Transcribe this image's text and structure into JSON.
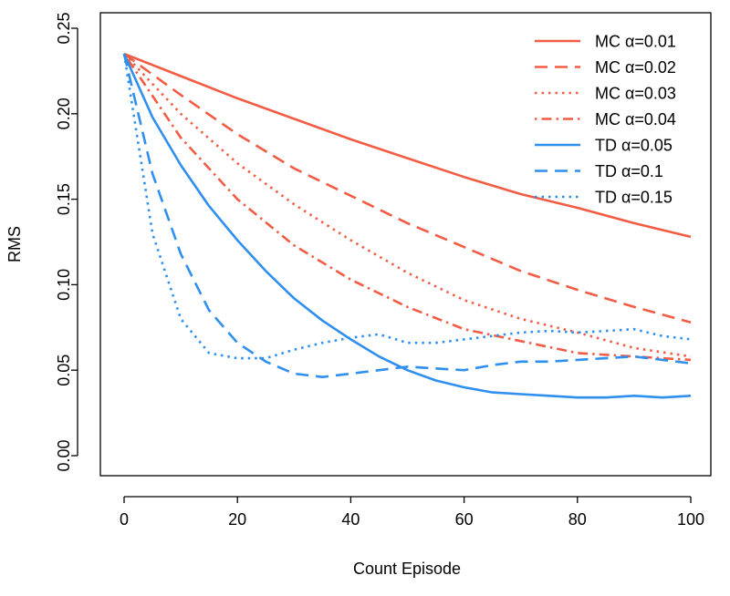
{
  "chart_data": {
    "type": "line",
    "title": "",
    "xlabel": "Count Episode",
    "ylabel": "RMS",
    "xlim": [
      0,
      100
    ],
    "ylim": [
      0,
      0.25
    ],
    "xticks": [
      0,
      20,
      40,
      60,
      80,
      100
    ],
    "yticks": [
      0.0,
      0.05,
      0.1,
      0.15,
      0.2,
      0.25
    ],
    "xtick_labels": [
      "0",
      "20",
      "40",
      "60",
      "80",
      "100"
    ],
    "ytick_labels": [
      "0.00",
      "0.05",
      "0.10",
      "0.15",
      "0.20",
      "0.25"
    ],
    "grid": false,
    "legend_position": "top-right",
    "colors": {
      "mc": "#f25c44",
      "td": "#2e8fef"
    },
    "series": [
      {
        "name": "MC α=0.01",
        "color": "#f25c44",
        "style": "solid",
        "x": [
          0,
          10,
          20,
          30,
          40,
          50,
          60,
          70,
          80,
          90,
          100
        ],
        "values": [
          0.235,
          0.222,
          0.209,
          0.197,
          0.185,
          0.174,
          0.163,
          0.153,
          0.145,
          0.136,
          0.128
        ]
      },
      {
        "name": "MC α=0.02",
        "color": "#f25c44",
        "style": "dashed",
        "x": [
          0,
          10,
          20,
          30,
          40,
          50,
          60,
          70,
          80,
          90,
          100
        ],
        "values": [
          0.235,
          0.211,
          0.188,
          0.168,
          0.152,
          0.136,
          0.122,
          0.108,
          0.097,
          0.087,
          0.078
        ]
      },
      {
        "name": "MC α=0.03",
        "color": "#f25c44",
        "style": "dotted",
        "x": [
          0,
          10,
          20,
          30,
          40,
          50,
          60,
          70,
          80,
          90,
          100
        ],
        "values": [
          0.235,
          0.2,
          0.171,
          0.147,
          0.126,
          0.107,
          0.091,
          0.08,
          0.072,
          0.063,
          0.058
        ]
      },
      {
        "name": "MC α=0.04",
        "color": "#f25c44",
        "style": "dotdash",
        "x": [
          0,
          10,
          20,
          30,
          40,
          50,
          60,
          70,
          80,
          90,
          100
        ],
        "values": [
          0.235,
          0.186,
          0.15,
          0.123,
          0.103,
          0.087,
          0.074,
          0.067,
          0.06,
          0.058,
          0.056
        ]
      },
      {
        "name": "TD α=0.05",
        "color": "#2e8fef",
        "style": "solid",
        "x": [
          0,
          5,
          10,
          15,
          20,
          25,
          30,
          35,
          40,
          45,
          50,
          55,
          60,
          65,
          70,
          75,
          80,
          85,
          90,
          95,
          100
        ],
        "values": [
          0.235,
          0.198,
          0.17,
          0.146,
          0.126,
          0.108,
          0.092,
          0.079,
          0.068,
          0.058,
          0.05,
          0.044,
          0.04,
          0.037,
          0.036,
          0.035,
          0.034,
          0.034,
          0.035,
          0.034,
          0.035
        ]
      },
      {
        "name": "TD α=0.1",
        "color": "#2e8fef",
        "style": "dashed",
        "x": [
          0,
          5,
          10,
          15,
          20,
          25,
          30,
          35,
          40,
          45,
          50,
          55,
          60,
          65,
          70,
          75,
          80,
          85,
          90,
          95,
          100
        ],
        "values": [
          0.235,
          0.165,
          0.118,
          0.085,
          0.066,
          0.055,
          0.048,
          0.046,
          0.048,
          0.05,
          0.052,
          0.051,
          0.05,
          0.053,
          0.055,
          0.055,
          0.056,
          0.057,
          0.058,
          0.056,
          0.054
        ]
      },
      {
        "name": "TD α=0.15",
        "color": "#2e8fef",
        "style": "dotted",
        "x": [
          0,
          5,
          10,
          15,
          20,
          25,
          30,
          35,
          40,
          45,
          50,
          55,
          60,
          65,
          70,
          75,
          80,
          85,
          90,
          95,
          100
        ],
        "values": [
          0.235,
          0.13,
          0.08,
          0.06,
          0.057,
          0.057,
          0.062,
          0.066,
          0.069,
          0.071,
          0.066,
          0.066,
          0.068,
          0.07,
          0.072,
          0.073,
          0.072,
          0.073,
          0.074,
          0.07,
          0.068
        ]
      }
    ]
  }
}
